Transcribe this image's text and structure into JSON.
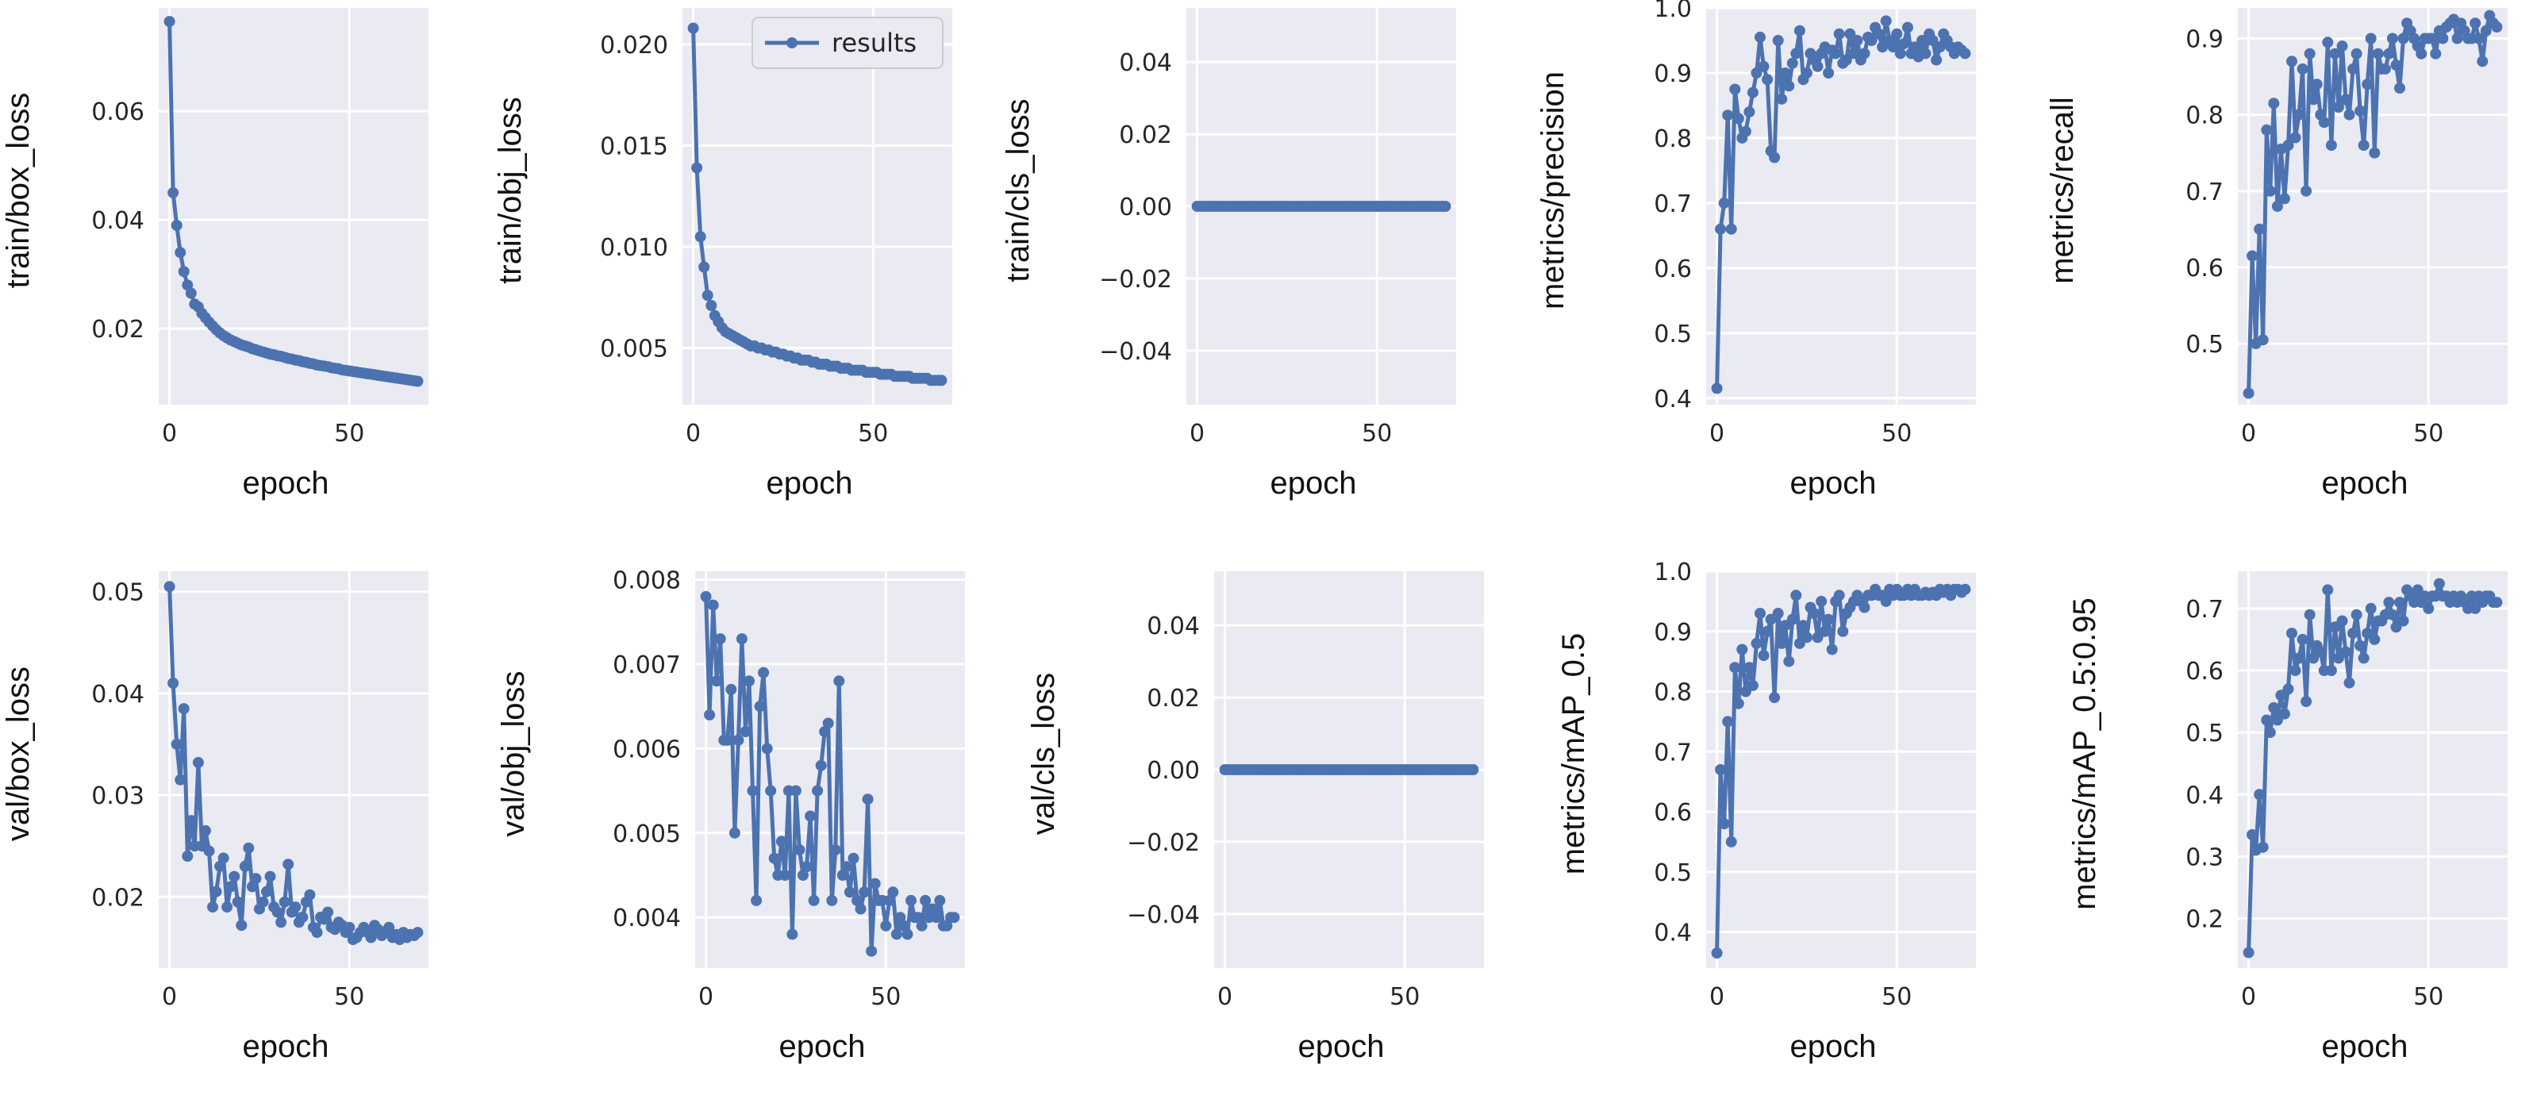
{
  "figure": {
    "legend_label": "results",
    "series_color": "#4c72b0",
    "plot_bg": "#eaeaf2",
    "grid_color": "#ffffff"
  },
  "chart_data": [
    {
      "type": "line",
      "name": "train_box_loss",
      "ylabel": "train/box_loss",
      "xlabel": "epoch",
      "xlim": [
        -3,
        72
      ],
      "ylim": [
        0.006,
        0.079
      ],
      "xticks": [
        0,
        50
      ],
      "yticks": [
        0.02,
        0.04,
        0.06
      ],
      "ytick_labels": [
        "0.02",
        "0.04",
        "0.06"
      ],
      "series": [
        {
          "name": "results",
          "x_start": 0,
          "values": [
            0.0765,
            0.045,
            0.039,
            0.034,
            0.0305,
            0.028,
            0.0265,
            0.0245,
            0.024,
            0.0228,
            0.022,
            0.0212,
            0.0205,
            0.0198,
            0.0192,
            0.0187,
            0.0183,
            0.0179,
            0.0176,
            0.0173,
            0.017,
            0.0168,
            0.0166,
            0.0163,
            0.0161,
            0.0159,
            0.0157,
            0.0155,
            0.0153,
            0.0152,
            0.015,
            0.0149,
            0.0147,
            0.0145,
            0.0144,
            0.0142,
            0.0141,
            0.0139,
            0.0138,
            0.0136,
            0.0135,
            0.0133,
            0.0132,
            0.0131,
            0.013,
            0.0128,
            0.0127,
            0.0126,
            0.0124,
            0.0123,
            0.0122,
            0.0121,
            0.012,
            0.0119,
            0.0118,
            0.0117,
            0.0116,
            0.0115,
            0.0114,
            0.0113,
            0.0112,
            0.0111,
            0.011,
            0.0109,
            0.0108,
            0.0107,
            0.0106,
            0.0105,
            0.0104,
            0.0103
          ]
        }
      ]
    },
    {
      "type": "line",
      "name": "train_obj_loss",
      "ylabel": "train/obj_loss",
      "xlabel": "epoch",
      "xlim": [
        -3,
        72
      ],
      "ylim": [
        0.0022,
        0.0218
      ],
      "xticks": [
        0,
        50
      ],
      "yticks": [
        0.005,
        0.01,
        0.015,
        0.02
      ],
      "ytick_labels": [
        "0.005",
        "0.010",
        "0.015",
        "0.020"
      ],
      "legend": "top-right",
      "series": [
        {
          "name": "results",
          "x_start": 0,
          "values": [
            0.0208,
            0.0139,
            0.0105,
            0.009,
            0.0076,
            0.0071,
            0.0066,
            0.0063,
            0.006,
            0.0058,
            0.0057,
            0.0056,
            0.0055,
            0.0054,
            0.0053,
            0.0052,
            0.0051,
            0.0051,
            0.005,
            0.005,
            0.0049,
            0.0049,
            0.0048,
            0.0048,
            0.0047,
            0.0047,
            0.0046,
            0.0046,
            0.0045,
            0.0045,
            0.0044,
            0.0044,
            0.0044,
            0.0043,
            0.0043,
            0.0042,
            0.0042,
            0.0042,
            0.0041,
            0.0041,
            0.0041,
            0.004,
            0.004,
            0.004,
            0.0039,
            0.0039,
            0.0039,
            0.0039,
            0.0038,
            0.0038,
            0.0038,
            0.0038,
            0.0037,
            0.0037,
            0.0037,
            0.0037,
            0.0036,
            0.0036,
            0.0036,
            0.0036,
            0.0036,
            0.0035,
            0.0035,
            0.0035,
            0.0035,
            0.0035,
            0.0034,
            0.0034,
            0.0034,
            0.0034
          ]
        }
      ]
    },
    {
      "type": "line",
      "name": "train_cls_loss",
      "ylabel": "train/cls_loss",
      "xlabel": "epoch",
      "xlim": [
        -3,
        72
      ],
      "ylim": [
        -0.055,
        0.055
      ],
      "xticks": [
        0,
        50
      ],
      "yticks": [
        -0.04,
        -0.02,
        0,
        0.02,
        0.04
      ],
      "ytick_labels": [
        "−0.04",
        "−0.02",
        "0.00",
        "0.02",
        "0.04"
      ],
      "series": [
        {
          "name": "results",
          "x_start": 0,
          "constant": 0,
          "count": 70
        }
      ]
    },
    {
      "type": "line",
      "name": "metrics_precision",
      "ylabel": "metrics/precision",
      "xlabel": "epoch",
      "xlim": [
        -3,
        72
      ],
      "ylim": [
        0.39,
        1.0
      ],
      "xticks": [
        0,
        50
      ],
      "yticks": [
        0.4,
        0.5,
        0.6,
        0.7,
        0.8,
        0.9,
        1.0
      ],
      "ytick_labels": [
        "0.4",
        "0.5",
        "0.6",
        "0.7",
        "0.8",
        "0.9",
        "1.0"
      ],
      "series": [
        {
          "name": "results",
          "x_start": 0,
          "values": [
            0.415,
            0.66,
            0.7,
            0.835,
            0.66,
            0.875,
            0.83,
            0.8,
            0.81,
            0.84,
            0.87,
            0.9,
            0.955,
            0.91,
            0.89,
            0.78,
            0.77,
            0.95,
            0.86,
            0.9,
            0.88,
            0.915,
            0.93,
            0.965,
            0.89,
            0.9,
            0.93,
            0.92,
            0.91,
            0.93,
            0.94,
            0.9,
            0.935,
            0.93,
            0.96,
            0.915,
            0.92,
            0.96,
            0.93,
            0.95,
            0.92,
            0.93,
            0.955,
            0.95,
            0.97,
            0.96,
            0.94,
            0.98,
            0.95,
            0.94,
            0.96,
            0.93,
            0.945,
            0.97,
            0.93,
            0.94,
            0.925,
            0.95,
            0.93,
            0.96,
            0.95,
            0.92,
            0.94,
            0.96,
            0.95,
            0.94,
            0.93,
            0.94,
            0.935,
            0.93
          ]
        }
      ]
    },
    {
      "type": "line",
      "name": "metrics_recall",
      "ylabel": "metrics/recall",
      "xlabel": "epoch",
      "xlim": [
        -3,
        72
      ],
      "ylim": [
        0.42,
        0.94
      ],
      "xticks": [
        0,
        50
      ],
      "yticks": [
        0.5,
        0.6,
        0.7,
        0.8,
        0.9
      ],
      "ytick_labels": [
        "0.5",
        "0.6",
        "0.7",
        "0.8",
        "0.9"
      ],
      "series": [
        {
          "name": "results",
          "x_start": 0,
          "values": [
            0.435,
            0.615,
            0.5,
            0.65,
            0.505,
            0.78,
            0.7,
            0.815,
            0.68,
            0.755,
            0.69,
            0.76,
            0.87,
            0.77,
            0.8,
            0.86,
            0.7,
            0.88,
            0.82,
            0.84,
            0.8,
            0.79,
            0.895,
            0.76,
            0.88,
            0.81,
            0.89,
            0.82,
            0.8,
            0.86,
            0.88,
            0.805,
            0.76,
            0.84,
            0.9,
            0.75,
            0.88,
            0.86,
            0.86,
            0.88,
            0.9,
            0.865,
            0.835,
            0.9,
            0.92,
            0.91,
            0.9,
            0.89,
            0.88,
            0.9,
            0.9,
            0.9,
            0.88,
            0.91,
            0.9,
            0.915,
            0.92,
            0.925,
            0.9,
            0.92,
            0.91,
            0.9,
            0.9,
            0.92,
            0.9,
            0.87,
            0.91,
            0.93,
            0.92,
            0.915
          ]
        }
      ]
    },
    {
      "type": "line",
      "name": "val_box_loss",
      "ylabel": "val/box_loss",
      "xlabel": "epoch",
      "xlim": [
        -3,
        72
      ],
      "ylim": [
        0.013,
        0.052
      ],
      "xticks": [
        0,
        50
      ],
      "yticks": [
        0.02,
        0.03,
        0.04,
        0.05
      ],
      "ytick_labels": [
        "0.02",
        "0.03",
        "0.04",
        "0.05"
      ],
      "series": [
        {
          "name": "results",
          "x_start": 0,
          "values": [
            0.0505,
            0.041,
            0.035,
            0.0315,
            0.0385,
            0.024,
            0.0275,
            0.025,
            0.0332,
            0.025,
            0.0265,
            0.0245,
            0.019,
            0.0205,
            0.023,
            0.0238,
            0.019,
            0.021,
            0.022,
            0.0195,
            0.0172,
            0.023,
            0.0248,
            0.021,
            0.0218,
            0.0188,
            0.0195,
            0.0205,
            0.022,
            0.019,
            0.0185,
            0.0175,
            0.0195,
            0.0232,
            0.0185,
            0.019,
            0.0175,
            0.018,
            0.0195,
            0.0202,
            0.017,
            0.0165,
            0.018,
            0.0178,
            0.0185,
            0.017,
            0.0168,
            0.0175,
            0.0172,
            0.0165,
            0.017,
            0.0158,
            0.016,
            0.0165,
            0.017,
            0.0165,
            0.016,
            0.0172,
            0.0168,
            0.0162,
            0.0165,
            0.017,
            0.016,
            0.0163,
            0.0158,
            0.0165,
            0.016,
            0.0163,
            0.0162,
            0.0165
          ]
        }
      ]
    },
    {
      "type": "line",
      "name": "val_obj_loss",
      "ylabel": "val/obj_loss",
      "xlabel": "epoch",
      "xlim": [
        -3,
        72
      ],
      "ylim": [
        0.0034,
        0.0081
      ],
      "xticks": [
        0,
        50
      ],
      "yticks": [
        0.004,
        0.005,
        0.006,
        0.007,
        0.008
      ],
      "ytick_labels": [
        "0.004",
        "0.005",
        "0.006",
        "0.007",
        "0.008"
      ],
      "series": [
        {
          "name": "results",
          "x_start": 0,
          "values": [
            0.0078,
            0.0064,
            0.0077,
            0.0068,
            0.0073,
            0.0061,
            0.0061,
            0.0067,
            0.005,
            0.0061,
            0.0073,
            0.0062,
            0.0068,
            0.0055,
            0.0042,
            0.0065,
            0.0069,
            0.006,
            0.0055,
            0.0047,
            0.0045,
            0.0049,
            0.0045,
            0.0055,
            0.0038,
            0.0055,
            0.0048,
            0.0045,
            0.0046,
            0.0052,
            0.0042,
            0.0055,
            0.0058,
            0.0062,
            0.0063,
            0.0042,
            0.0048,
            0.0068,
            0.0045,
            0.0046,
            0.0043,
            0.0047,
            0.0042,
            0.0041,
            0.0043,
            0.0054,
            0.0036,
            0.0044,
            0.0042,
            0.0042,
            0.0039,
            0.0042,
            0.0043,
            0.0038,
            0.004,
            0.0039,
            0.0038,
            0.0042,
            0.004,
            0.004,
            0.0039,
            0.0042,
            0.004,
            0.0041,
            0.004,
            0.0042,
            0.0039,
            0.0039,
            0.004,
            0.004
          ]
        }
      ]
    },
    {
      "type": "line",
      "name": "val_cls_loss",
      "ylabel": "val/cls_loss",
      "xlabel": "epoch",
      "xlim": [
        -3,
        72
      ],
      "ylim": [
        -0.055,
        0.055
      ],
      "xticks": [
        0,
        50
      ],
      "yticks": [
        -0.04,
        -0.02,
        0,
        0.02,
        0.04
      ],
      "ytick_labels": [
        "−0.04",
        "−0.02",
        "0.00",
        "0.02",
        "0.04"
      ],
      "series": [
        {
          "name": "results",
          "x_start": 0,
          "constant": 0,
          "count": 70
        }
      ]
    },
    {
      "type": "line",
      "name": "metrics_map_0_5",
      "ylabel": "metrics/mAP_0.5",
      "xlabel": "epoch",
      "xlim": [
        -3,
        72
      ],
      "ylim": [
        0.34,
        1.0
      ],
      "xticks": [
        0,
        50
      ],
      "yticks": [
        0.4,
        0.5,
        0.6,
        0.7,
        0.8,
        0.9,
        1.0
      ],
      "ytick_labels": [
        "0.4",
        "0.5",
        "0.6",
        "0.7",
        "0.8",
        "0.9",
        "1.0"
      ],
      "series": [
        {
          "name": "results",
          "x_start": 0,
          "values": [
            0.365,
            0.67,
            0.58,
            0.75,
            0.55,
            0.84,
            0.78,
            0.87,
            0.8,
            0.84,
            0.81,
            0.88,
            0.93,
            0.86,
            0.9,
            0.92,
            0.79,
            0.93,
            0.88,
            0.91,
            0.85,
            0.92,
            0.96,
            0.88,
            0.91,
            0.89,
            0.94,
            0.93,
            0.89,
            0.95,
            0.9,
            0.92,
            0.87,
            0.95,
            0.96,
            0.9,
            0.93,
            0.94,
            0.95,
            0.96,
            0.95,
            0.94,
            0.96,
            0.96,
            0.97,
            0.96,
            0.96,
            0.95,
            0.97,
            0.96,
            0.97,
            0.96,
            0.96,
            0.97,
            0.96,
            0.97,
            0.96,
            0.96,
            0.965,
            0.96,
            0.965,
            0.96,
            0.97,
            0.965,
            0.97,
            0.96,
            0.97,
            0.97,
            0.965,
            0.97
          ]
        }
      ]
    },
    {
      "type": "line",
      "name": "metrics_map_0_5_0_95",
      "ylabel": "metrics/mAP_0.5:0.95",
      "xlabel": "epoch",
      "xlim": [
        -3,
        72
      ],
      "ylim": [
        0.12,
        0.76
      ],
      "xticks": [
        0,
        50
      ],
      "yticks": [
        0.2,
        0.3,
        0.4,
        0.5,
        0.6,
        0.7
      ],
      "ytick_labels": [
        "0.2",
        "0.3",
        "0.4",
        "0.5",
        "0.6",
        "0.7"
      ],
      "series": [
        {
          "name": "results",
          "x_start": 0,
          "values": [
            0.145,
            0.335,
            0.31,
            0.4,
            0.315,
            0.52,
            0.5,
            0.54,
            0.52,
            0.56,
            0.53,
            0.57,
            0.66,
            0.6,
            0.62,
            0.65,
            0.55,
            0.69,
            0.62,
            0.64,
            0.63,
            0.6,
            0.73,
            0.6,
            0.67,
            0.62,
            0.68,
            0.63,
            0.58,
            0.66,
            0.69,
            0.64,
            0.62,
            0.66,
            0.7,
            0.65,
            0.68,
            0.68,
            0.69,
            0.71,
            0.69,
            0.67,
            0.71,
            0.68,
            0.73,
            0.72,
            0.71,
            0.73,
            0.71,
            0.72,
            0.7,
            0.72,
            0.72,
            0.74,
            0.72,
            0.72,
            0.71,
            0.72,
            0.71,
            0.72,
            0.71,
            0.7,
            0.72,
            0.7,
            0.72,
            0.71,
            0.72,
            0.72,
            0.71,
            0.71
          ]
        }
      ]
    }
  ]
}
